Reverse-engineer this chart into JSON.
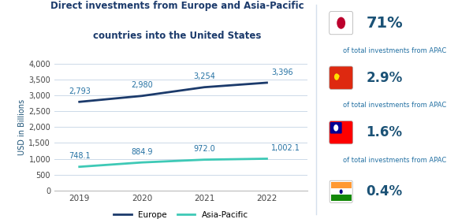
{
  "title_line1": "Direct investments from Europe and Asia-Pacific",
  "title_line2": "countries into the United States",
  "years": [
    2019,
    2020,
    2021,
    2022
  ],
  "europe_values": [
    2793,
    2980,
    3254,
    3396
  ],
  "apac_values": [
    748.1,
    884.9,
    972.0,
    1002.1
  ],
  "europe_labels": [
    "2,793",
    "2,980",
    "3,254",
    "3,396"
  ],
  "apac_labels": [
    "748.1",
    "884.9",
    "972.0",
    "1,002.1"
  ],
  "europe_color": "#1b3a6b",
  "apac_color": "#3ec9b6",
  "ylabel": "USD in Billions",
  "ylim": [
    0,
    4000
  ],
  "yticks": [
    0,
    500,
    1000,
    1500,
    2000,
    2500,
    3000,
    3500,
    4000
  ],
  "ytick_labels": [
    "0",
    "500",
    "1,000",
    "1,500",
    "2,000",
    "2,500",
    "3,000",
    "3,500",
    "4,000"
  ],
  "background_color": "#ffffff",
  "grid_color": "#ccd9e8",
  "title_color": "#1b3a6b",
  "axis_color": "#1b5276",
  "label_color": "#2471a3",
  "right_pct_color": "#1b5276",
  "right_sub_color": "#2471a3",
  "pcts": [
    "71%",
    "2.9%",
    "1.6%",
    "0.4%"
  ],
  "subs": [
    "of total investments from APAC",
    "of total investments from APAC",
    "of total investments from APAC",
    ""
  ],
  "separator_color": "#d5e0ec"
}
